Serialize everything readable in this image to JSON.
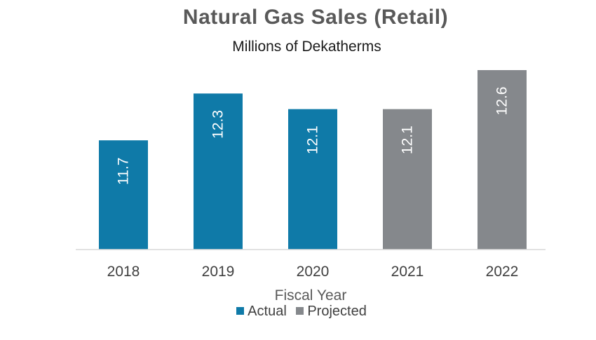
{
  "chart_data": {
    "type": "bar",
    "title": "Natural Gas Sales (Retail)",
    "subtitle": "Millions of Dekatherms",
    "xlabel": "Fiscal Year",
    "ylabel": "",
    "categories": [
      "2018",
      "2019",
      "2020",
      "2021",
      "2022"
    ],
    "values": [
      11.7,
      12.3,
      12.1,
      12.1,
      12.6
    ],
    "status": [
      "Actual",
      "Actual",
      "Actual",
      "Projected",
      "Projected"
    ],
    "data_labels": [
      "11.7",
      "12.3",
      "12.1",
      "12.1",
      "12.6"
    ],
    "ylim": [
      0,
      12.6
    ],
    "grid": false,
    "legend": {
      "position": "bottom",
      "entries": [
        {
          "name": "Actual",
          "color": "#0f7aa8"
        },
        {
          "name": "Projected",
          "color": "#85888c"
        }
      ]
    },
    "colors": {
      "Actual": "#0f7aa8",
      "Projected": "#85888c"
    }
  }
}
